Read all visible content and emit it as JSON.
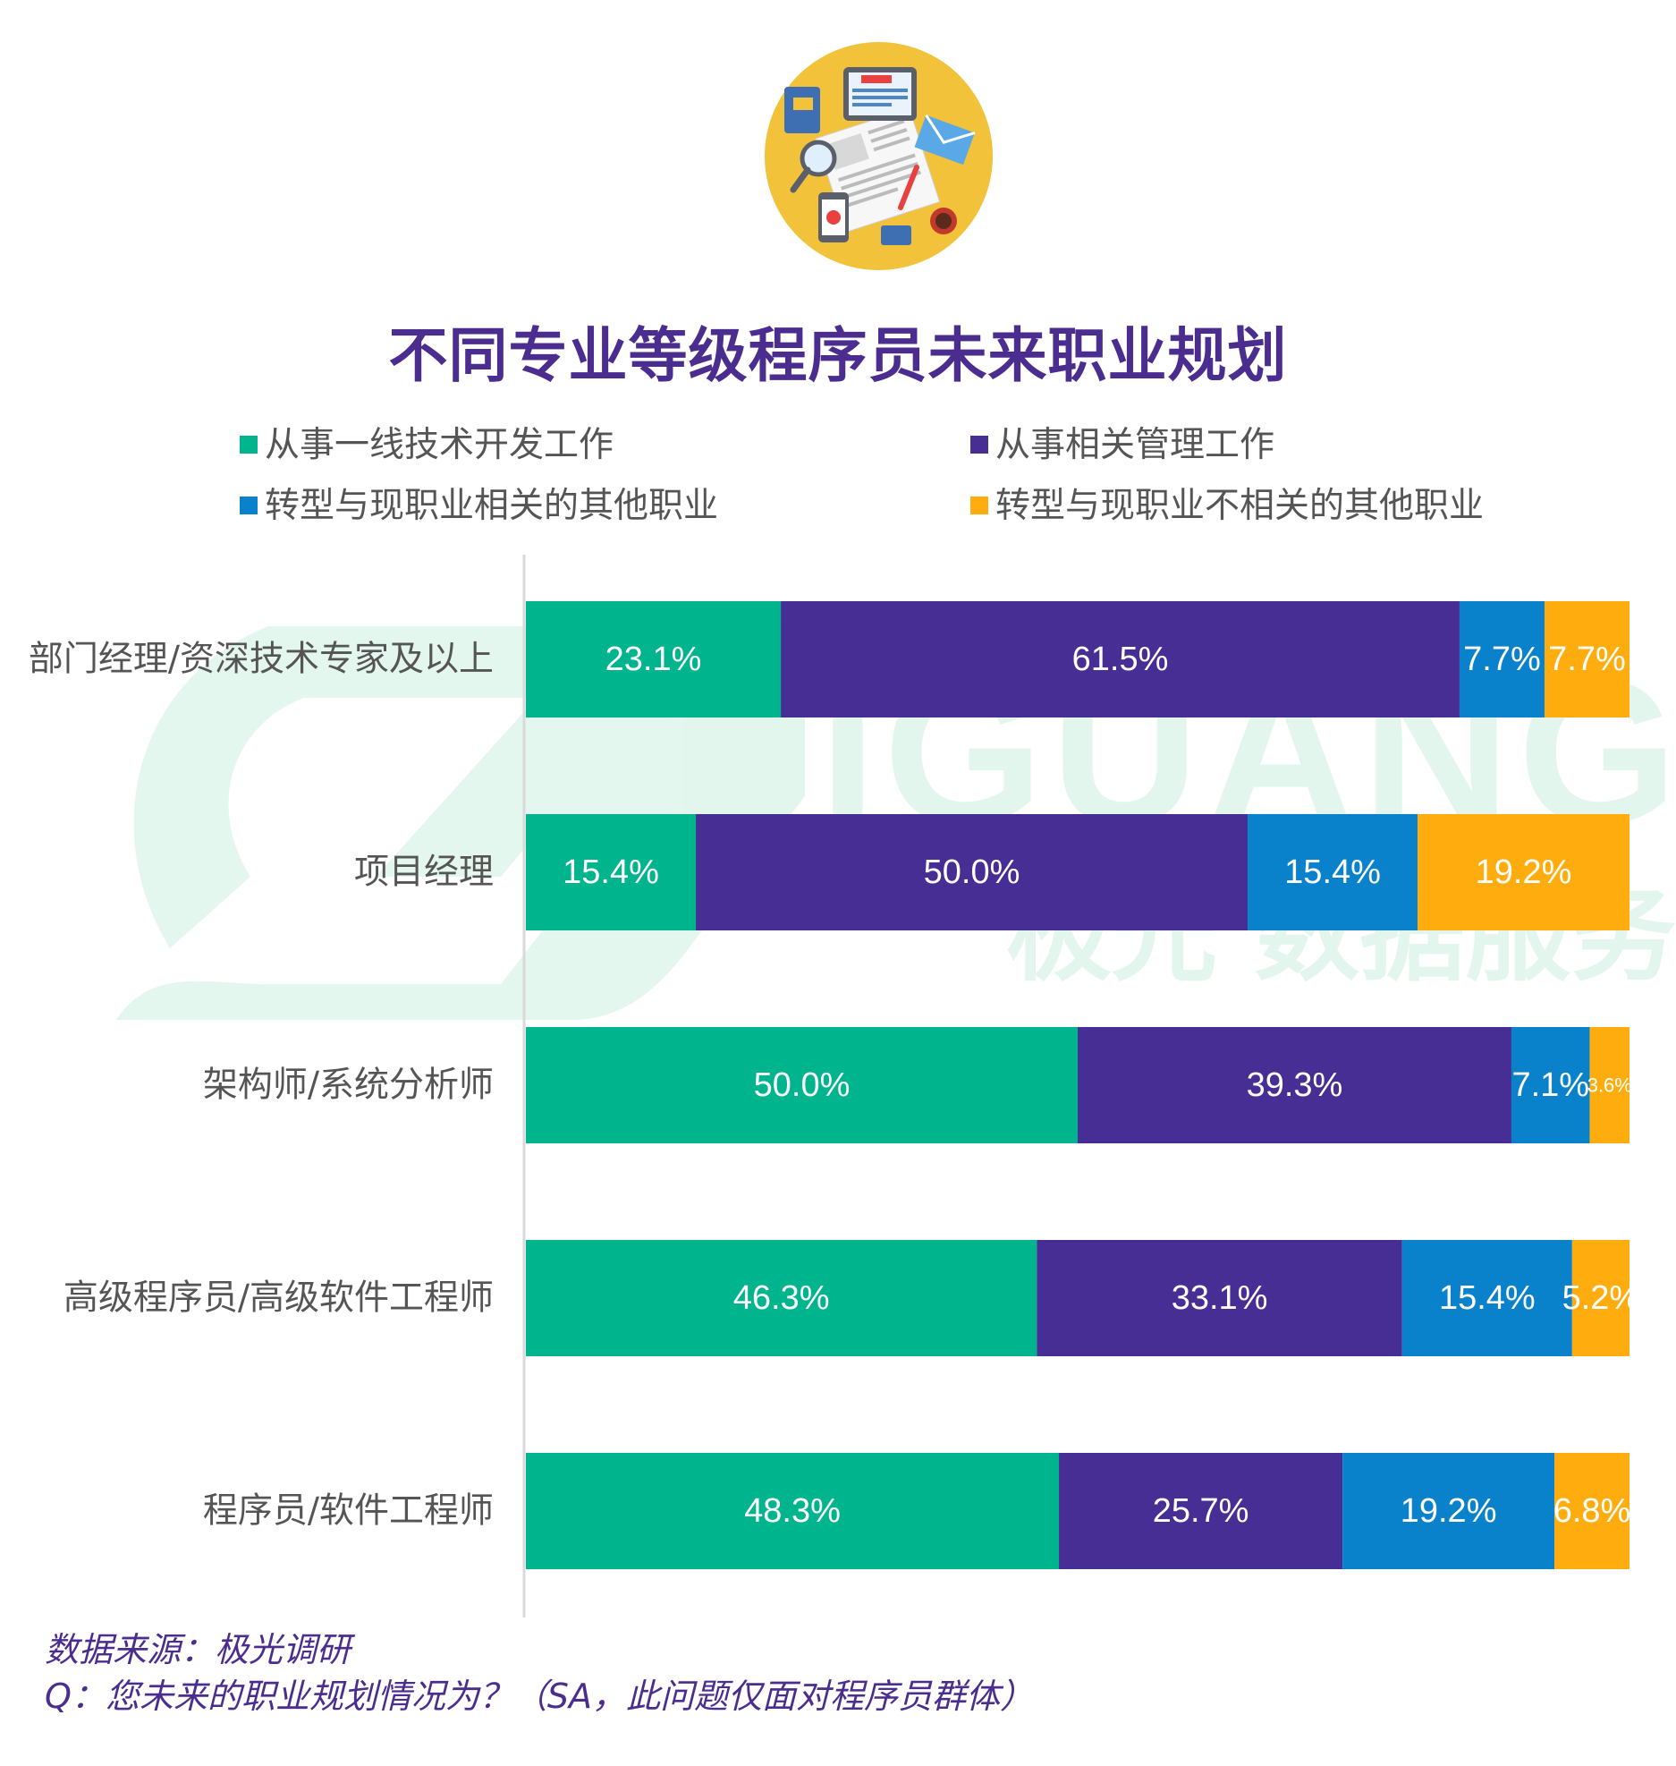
{
  "title": "不同专业等级程序员未来职业规划",
  "colors": {
    "series": [
      "#00b48e",
      "#472e94",
      "#0a82cb",
      "#ffad0e"
    ],
    "title": "#4a2d8f",
    "label_text": "#ffffff",
    "category_text": "#555555",
    "axis": "#d9d9d9",
    "icon_circle": "#f1c23a"
  },
  "icon": "news-media-illustration-icon",
  "watermark": {
    "logo": "jiguang-logo",
    "text_en": "JIGUANG",
    "text_cn": "极光 数据服务"
  },
  "chart_data": {
    "type": "bar",
    "orientation": "horizontal",
    "stacked": true,
    "title": "不同专业等级程序员未来职业规划",
    "categories": [
      "部门经理/资深技术专家及以上",
      "项目经理",
      "架构师/系统分析师",
      "高级程序员/高级软件工程师",
      "程序员/软件工程师"
    ],
    "series": [
      {
        "name": "从事一线技术开发工作",
        "values": [
          23.1,
          15.4,
          50.0,
          46.3,
          48.3
        ],
        "labels": [
          "23.1%",
          "15.4%",
          "50.0%",
          "46.3%",
          "48.3%"
        ]
      },
      {
        "name": "从事相关管理工作",
        "values": [
          61.5,
          50.0,
          39.3,
          33.1,
          25.7
        ],
        "labels": [
          "61.5%",
          "50.0%",
          "39.3%",
          "33.1%",
          "25.7%"
        ]
      },
      {
        "name": "转型与现职业相关的其他职业",
        "values": [
          7.7,
          15.4,
          7.1,
          15.4,
          19.2
        ],
        "labels": [
          "7.7%",
          "15.4%",
          "7.1%",
          "15.4%",
          "19.2%"
        ]
      },
      {
        "name": "转型与现职业不相关的其他职业",
        "values": [
          7.7,
          19.2,
          3.6,
          5.2,
          6.8
        ],
        "labels": [
          "7.7%",
          "19.2%",
          "3.6%",
          "5.2%",
          "6.8%"
        ]
      }
    ],
    "xlim": [
      0,
      100
    ],
    "legend": "top",
    "grid": false
  },
  "source": {
    "line1": "数据来源：极光调研",
    "line2": "Q：您未来的职业规划情况为？（SA，此问题仅面对程序员群体）"
  }
}
